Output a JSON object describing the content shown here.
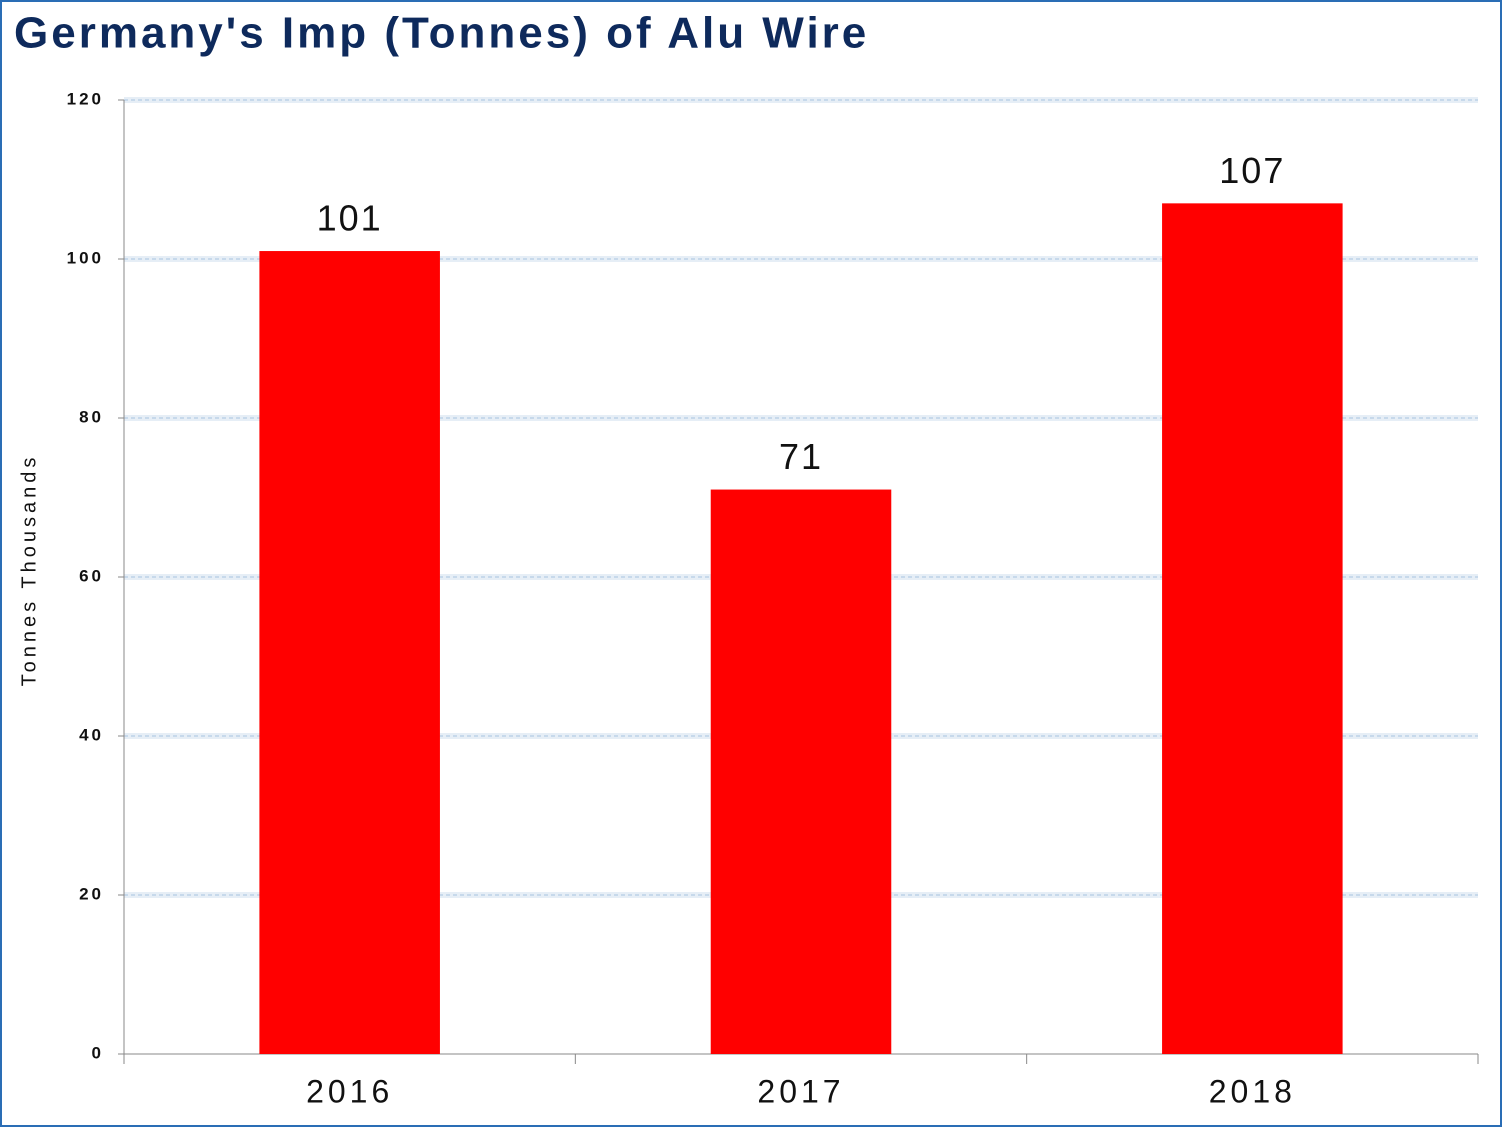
{
  "chart_data": {
    "type": "bar",
    "title": "Germany's Imp (Tonnes) of Alu Wire",
    "y_label": "Tonnes Thousands",
    "categories": [
      "2016",
      "2017",
      "2018"
    ],
    "values": [
      101,
      71,
      107
    ],
    "color": "#ff0000",
    "ylim": [
      0,
      120
    ],
    "yticks": [
      0,
      20,
      40,
      60,
      80,
      100,
      120
    ],
    "grid": true
  }
}
